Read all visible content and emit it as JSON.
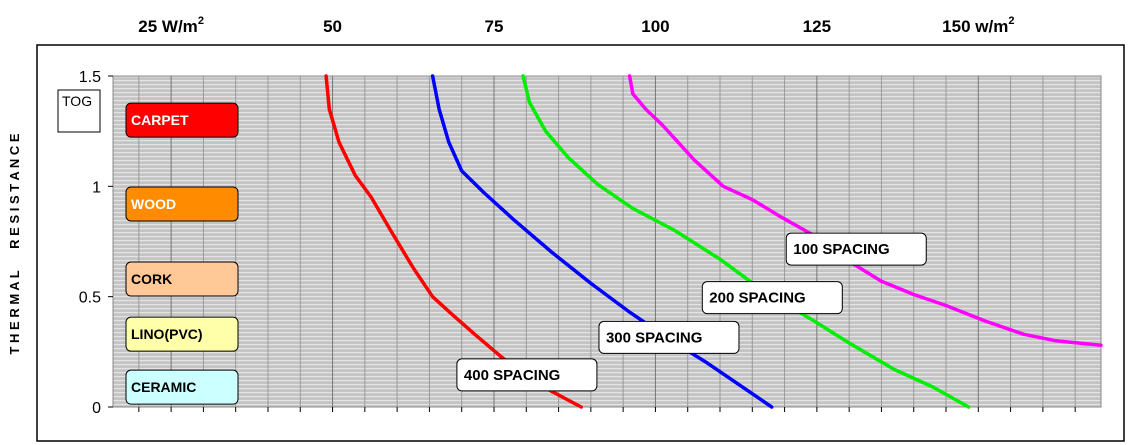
{
  "chart_data": {
    "type": "line",
    "x_ticks": [
      {
        "value": 25,
        "label": "25 W/m",
        "sup": "2"
      },
      {
        "value": 50,
        "label": "50",
        "sup": ""
      },
      {
        "value": 75,
        "label": "75",
        "sup": ""
      },
      {
        "value": 100,
        "label": "100",
        "sup": ""
      },
      {
        "value": 125,
        "label": "125",
        "sup": ""
      },
      {
        "value": 150,
        "label": "150 w/m",
        "sup": "2"
      }
    ],
    "y_ticks": [
      {
        "value": 0,
        "label": "0"
      },
      {
        "value": 0.5,
        "label": "0.5"
      },
      {
        "value": 1,
        "label": "1"
      },
      {
        "value": 1.5,
        "label": "1.5"
      }
    ],
    "ylabel": "THERMAL RESISTANCE",
    "y_unit": "TOG",
    "ylim": [
      0,
      1.5
    ],
    "xlim": [
      16,
      169
    ],
    "grid": true,
    "series": [
      {
        "name": "400 SPACING",
        "color": "#ff0000",
        "points": [
          [
            49.0,
            1.5
          ],
          [
            49.5,
            1.35
          ],
          [
            51,
            1.2
          ],
          [
            53.5,
            1.05
          ],
          [
            56,
            0.95
          ],
          [
            59,
            0.8
          ],
          [
            62.5,
            0.63
          ],
          [
            65.5,
            0.5
          ],
          [
            68.5,
            0.42
          ],
          [
            72,
            0.33
          ],
          [
            76,
            0.23
          ],
          [
            80,
            0.14
          ],
          [
            84,
            0.07
          ],
          [
            88.5,
            0
          ]
        ]
      },
      {
        "name": "300 SPACING",
        "color": "#0000ff",
        "points": [
          [
            65.5,
            1.5
          ],
          [
            66.5,
            1.35
          ],
          [
            68,
            1.2
          ],
          [
            70,
            1.07
          ],
          [
            73.5,
            0.97
          ],
          [
            78,
            0.85
          ],
          [
            84,
            0.7
          ],
          [
            90,
            0.56
          ],
          [
            96,
            0.43
          ],
          [
            102.5,
            0.3
          ],
          [
            108,
            0.2
          ],
          [
            113,
            0.1
          ],
          [
            118,
            0
          ]
        ]
      },
      {
        "name": "200 SPACING",
        "color": "#00ee00",
        "points": [
          [
            79.5,
            1.5
          ],
          [
            80.5,
            1.38
          ],
          [
            83,
            1.25
          ],
          [
            86.5,
            1.13
          ],
          [
            91,
            1.01
          ],
          [
            96.5,
            0.9
          ],
          [
            103,
            0.8
          ],
          [
            110,
            0.67
          ],
          [
            117,
            0.52
          ],
          [
            124,
            0.4
          ],
          [
            130,
            0.29
          ],
          [
            137,
            0.17
          ],
          [
            143,
            0.09
          ],
          [
            148.5,
            0
          ]
        ]
      },
      {
        "name": "100 SPACING",
        "color": "#ff00ff",
        "points": [
          [
            96,
            1.5
          ],
          [
            96.5,
            1.42
          ],
          [
            98.5,
            1.35
          ],
          [
            101,
            1.28
          ],
          [
            106,
            1.12
          ],
          [
            110.5,
            1.0
          ],
          [
            115,
            0.94
          ],
          [
            119.5,
            0.86
          ],
          [
            125,
            0.77
          ],
          [
            130,
            0.66
          ],
          [
            135,
            0.57
          ],
          [
            140,
            0.51
          ],
          [
            145,
            0.46
          ],
          [
            151,
            0.39
          ],
          [
            157,
            0.33
          ],
          [
            162,
            0.3
          ],
          [
            169,
            0.28
          ]
        ]
      }
    ],
    "annotations": [
      {
        "text": "400 SPACING",
        "x": 77,
        "y": 0.15
      },
      {
        "text": "300 SPACING",
        "x": 99,
        "y": 0.32
      },
      {
        "text": "200 SPACING",
        "x": 115,
        "y": 0.5
      },
      {
        "text": "100 SPACING",
        "x": 128,
        "y": 0.72
      }
    ],
    "materials": [
      {
        "label": "CARPET",
        "y": 1.3,
        "fill": "#ff0000",
        "text_color": "#ffffff"
      },
      {
        "label": "WOOD",
        "y": 0.92,
        "fill": "#ff8c00",
        "text_color": "#ffffff"
      },
      {
        "label": "CORK",
        "y": 0.58,
        "fill": "#ffc896",
        "text_color": "#000000"
      },
      {
        "label": "LINO(PVC)",
        "y": 0.33,
        "fill": "#ffffaa",
        "text_color": "#000000"
      },
      {
        "label": "CERAMIC",
        "y": 0.09,
        "fill": "#ccffff",
        "text_color": "#000000"
      }
    ]
  }
}
